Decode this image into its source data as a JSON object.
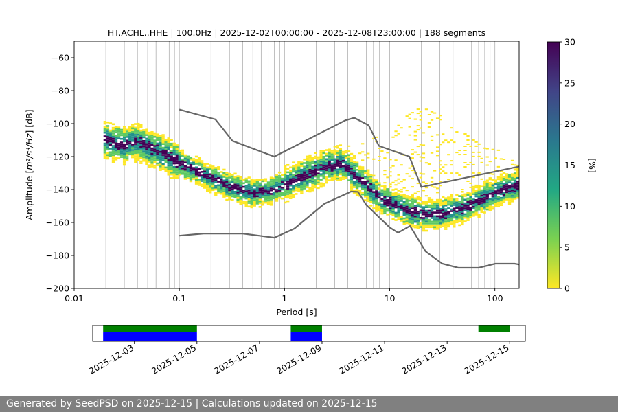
{
  "footer": {
    "generated_text": "Generated by SeedPSD on 2025-12-15",
    "separator": " | ",
    "updated_text": "Calculations updated on 2025-12-15"
  },
  "chart_data": [
    {
      "type": "heatmap",
      "title": "HT.ACHL..HHE | 100.0Hz | 2025-12-02T00:00:00 - 2025-12-08T23:00:00 | 188 segments",
      "xlabel": "Period [s]",
      "ylabel_prefix": "Amplitude [",
      "ylabel_math": "m²/s⁴/Hz",
      "ylabel_suffix": "] [dB]",
      "x_scale": "log",
      "xlim": [
        0.01,
        170
      ],
      "ylim": [
        -200,
        -50
      ],
      "xticks": [
        {
          "value": 0.01,
          "label": "0.01"
        },
        {
          "value": 0.1,
          "label": "0.1"
        },
        {
          "value": 1,
          "label": "1"
        },
        {
          "value": 10,
          "label": "10"
        },
        {
          "value": 100,
          "label": "100"
        }
      ],
      "yticks": [
        {
          "value": -60,
          "label": "−60"
        },
        {
          "value": -80,
          "label": "−80"
        },
        {
          "value": -100,
          "label": "−100"
        },
        {
          "value": -120,
          "label": "−120"
        },
        {
          "value": -140,
          "label": "−140"
        },
        {
          "value": -160,
          "label": "−160"
        },
        {
          "value": -180,
          "label": "−180"
        },
        {
          "value": -200,
          "label": "−200"
        }
      ],
      "grid_periods": [
        0.02,
        0.03,
        0.04,
        0.05,
        0.06,
        0.07,
        0.08,
        0.09,
        0.1,
        0.2,
        0.3,
        0.4,
        0.5,
        0.6,
        0.7,
        0.8,
        0.9,
        1,
        2,
        3,
        4,
        5,
        6,
        7,
        8,
        9,
        10,
        20,
        30,
        40,
        50,
        60,
        70,
        80,
        90,
        100
      ],
      "mode_curve": [
        [
          0.02,
          -110
        ],
        [
          0.025,
          -112
        ],
        [
          0.03,
          -113
        ],
        [
          0.04,
          -111
        ],
        [
          0.05,
          -114
        ],
        [
          0.07,
          -118
        ],
        [
          0.1,
          -124
        ],
        [
          0.15,
          -129
        ],
        [
          0.2,
          -133
        ],
        [
          0.3,
          -138
        ],
        [
          0.5,
          -142
        ],
        [
          0.7,
          -141
        ],
        [
          1.0,
          -137
        ],
        [
          1.5,
          -132
        ],
        [
          2.5,
          -126
        ],
        [
          3.5,
          -124
        ],
        [
          5.0,
          -133
        ],
        [
          6.0,
          -137
        ],
        [
          8.0,
          -145
        ],
        [
          10.0,
          -148
        ],
        [
          15.0,
          -153
        ],
        [
          20.0,
          -155
        ],
        [
          30.0,
          -155
        ],
        [
          50.0,
          -151
        ],
        [
          80.0,
          -145
        ],
        [
          120.0,
          -140
        ],
        [
          170.0,
          -137
        ]
      ],
      "upper_noise_model": [
        [
          0.1,
          -91.5
        ],
        [
          0.22,
          -97.4
        ],
        [
          0.32,
          -110.5
        ],
        [
          0.8,
          -120.0
        ],
        [
          3.8,
          -98.0
        ],
        [
          4.6,
          -96.5
        ],
        [
          6.3,
          -101.0
        ],
        [
          7.9,
          -113.5
        ],
        [
          15.4,
          -120.0
        ],
        [
          20.0,
          -138.5
        ],
        [
          170.0,
          -126.0
        ]
      ],
      "lower_noise_model": [
        [
          0.1,
          -168.0
        ],
        [
          0.17,
          -166.7
        ],
        [
          0.4,
          -166.7
        ],
        [
          0.8,
          -169.2
        ],
        [
          1.24,
          -163.7
        ],
        [
          2.4,
          -148.6
        ],
        [
          4.3,
          -141.2
        ],
        [
          5.0,
          -141.4
        ],
        [
          6.0,
          -149.4
        ],
        [
          10.0,
          -163.0
        ],
        [
          12.0,
          -166.2
        ],
        [
          15.6,
          -162.1
        ],
        [
          21.9,
          -177.5
        ],
        [
          31.6,
          -185.0
        ],
        [
          45.0,
          -187.5
        ],
        [
          70.0,
          -187.5
        ],
        [
          101.0,
          -185.0
        ],
        [
          154.0,
          -185.0
        ],
        [
          170.0,
          -185.5
        ]
      ],
      "secondary_band": {
        "period_start": 2.5,
        "period_end": 170,
        "top_path": [
          [
            2.5,
            -120
          ],
          [
            10,
            -102
          ],
          [
            20,
            -90
          ],
          [
            30,
            -95
          ],
          [
            80,
            -115
          ],
          [
            170,
            -118
          ]
        ]
      },
      "colorbar": {
        "label": "[%]",
        "vmin": 0,
        "vmax": 30,
        "ticks": [
          0,
          5,
          10,
          15,
          20,
          25,
          30
        ],
        "colormap": "viridis_r"
      },
      "colors": {
        "noise_model": "#666666",
        "high": "#440154",
        "mid": "#21918c",
        "low": "#5ec962",
        "lowest": "#fde725"
      }
    },
    {
      "type": "gantt",
      "xticks": [
        "2025-12-03",
        "2025-12-05",
        "2025-12-07",
        "2025-12-09",
        "2025-12-11",
        "2025-12-13",
        "2025-12-15"
      ],
      "xlim": [
        "2025-12-01T16:00",
        "2025-12-15T12:00"
      ],
      "available_data": [
        {
          "start": "2025-12-02T00:00",
          "end": "2025-12-05T00:00"
        },
        {
          "start": "2025-12-08T00:00",
          "end": "2025-12-09T00:00"
        },
        {
          "start": "2025-12-14T00:00",
          "end": "2025-12-15T00:00"
        }
      ],
      "used_segments": [
        {
          "start": "2025-12-02T00:00",
          "end": "2025-12-05T00:00"
        },
        {
          "start": "2025-12-08T00:00",
          "end": "2025-12-09T00:00"
        }
      ],
      "colors": {
        "available": "#008000",
        "used": "#0000ff"
      }
    }
  ]
}
